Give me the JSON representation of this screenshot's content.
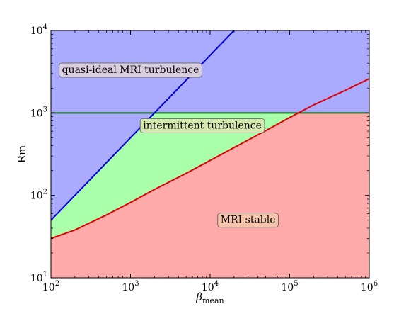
{
  "chart_data": {
    "type": "line",
    "title": "",
    "xlabel": "β",
    "xlabel_sub": "mean",
    "ylabel": "Rm",
    "xscale": "log",
    "yscale": "log",
    "xlim": [
      100,
      1000000
    ],
    "ylim": [
      10,
      10000
    ],
    "x_ticks": [
      {
        "value": 100,
        "base": "10",
        "exp": "2"
      },
      {
        "value": 1000,
        "base": "10",
        "exp": "3"
      },
      {
        "value": 10000,
        "base": "10",
        "exp": "4"
      },
      {
        "value": 100000,
        "base": "10",
        "exp": "5"
      },
      {
        "value": 1000000,
        "base": "10",
        "exp": "6"
      }
    ],
    "y_ticks": [
      {
        "value": 10,
        "base": "10",
        "exp": "1"
      },
      {
        "value": 100,
        "base": "10",
        "exp": "2"
      },
      {
        "value": 1000,
        "base": "10",
        "exp": "3"
      },
      {
        "value": 10000,
        "base": "10",
        "exp": "4"
      }
    ],
    "series": [
      {
        "color": "#0000dd",
        "x": [
          100,
          20000
        ],
        "y": [
          50,
          10000
        ]
      },
      {
        "color": "#dd0000",
        "x": [
          100,
          200,
          500,
          1000,
          2000,
          5000,
          10000,
          20000,
          50000,
          100000,
          200000,
          500000,
          1000000
        ],
        "y": [
          30,
          38,
          58,
          82,
          118,
          185,
          265,
          380,
          610,
          880,
          1250,
          1880,
          2600
        ]
      },
      {
        "color": "#006600",
        "x": [
          100,
          1000000
        ],
        "y": [
          1000,
          1000
        ]
      }
    ],
    "regions": [
      {
        "label": "quasi-ideal MRI turbulence",
        "fill": "#aaaaff",
        "box_fill": "#d9cde0",
        "label_x": 1000,
        "label_y": 3300
      },
      {
        "label": "intermittent turbulence",
        "fill": "#aaffaa",
        "box_fill": "#d4e8b0",
        "label_x": 8000,
        "label_y": 700
      },
      {
        "label": "MRI stable",
        "fill": "#ffaaaa",
        "box_fill": "#f6c4aa",
        "label_x": 30000,
        "label_y": 50
      }
    ]
  }
}
